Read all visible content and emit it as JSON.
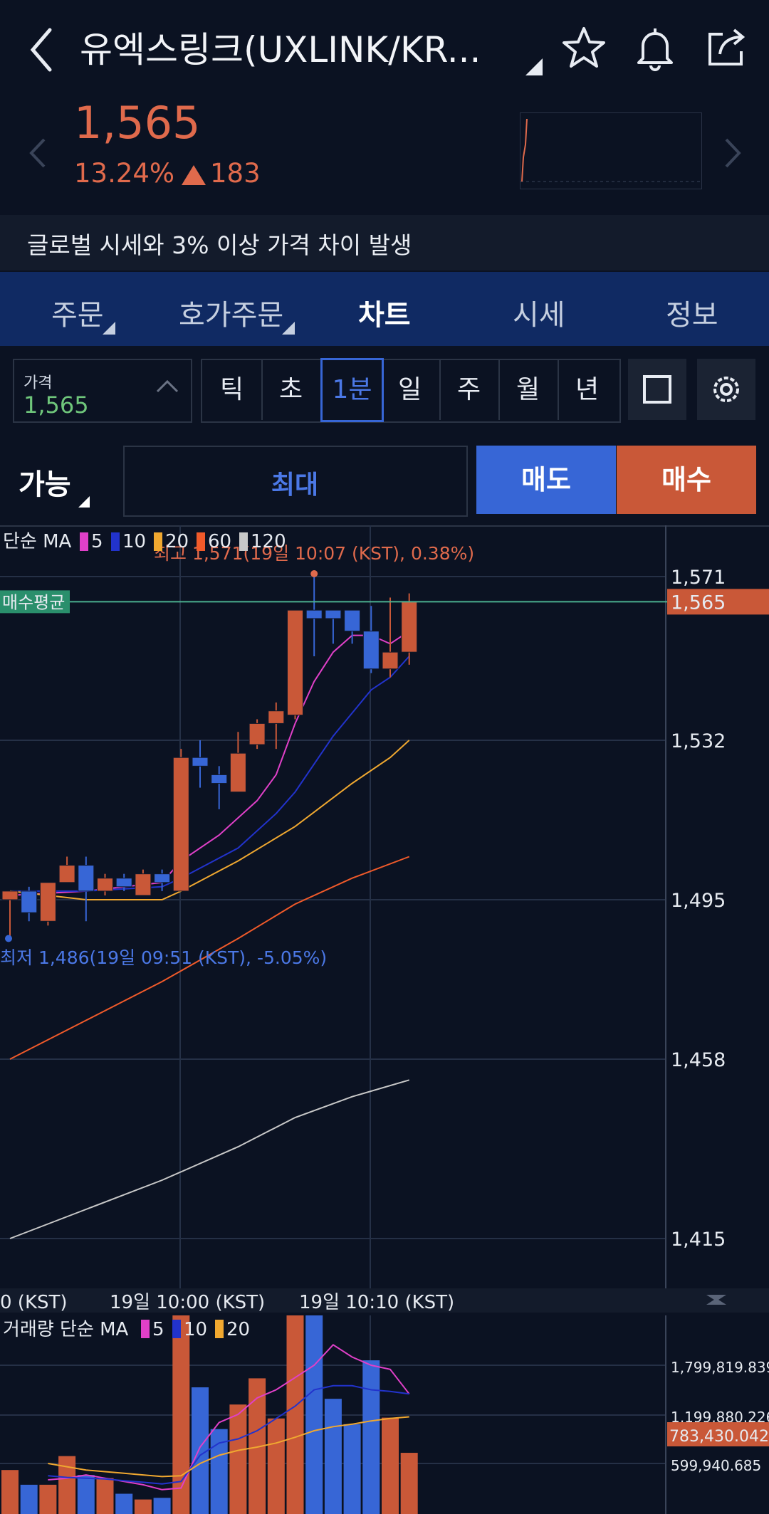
{
  "header": {
    "title": "유엑스링크(UXLINK/KR...",
    "icons": [
      "back-icon",
      "star-icon",
      "bell-icon",
      "share-icon"
    ]
  },
  "quote": {
    "price": "1,565",
    "change_pct": "13.24%",
    "change_value": "183",
    "direction": "up",
    "color": "#e06a4c"
  },
  "notice": "글로벌 시세와 3% 이상 가격 차이 발생",
  "tabs": [
    {
      "label": "주문",
      "active": false
    },
    {
      "label": "호가주문",
      "active": false
    },
    {
      "label": "차트",
      "active": true
    },
    {
      "label": "시세",
      "active": false
    },
    {
      "label": "정보",
      "active": false
    }
  ],
  "price_selector": {
    "label": "가격",
    "value": "1,565"
  },
  "periods": [
    {
      "label": "틱",
      "active": false
    },
    {
      "label": "초",
      "active": false
    },
    {
      "label": "1분",
      "active": true
    },
    {
      "label": "일",
      "active": false
    },
    {
      "label": "주",
      "active": false
    },
    {
      "label": "월",
      "active": false
    },
    {
      "label": "년",
      "active": false
    }
  ],
  "order": {
    "available_label": "가능",
    "max_label": "최대",
    "sell_label": "매도",
    "buy_label": "매수",
    "sell_color": "#3766d6",
    "buy_color": "#c95838"
  },
  "chart_data": {
    "type": "candlestick",
    "legend": {
      "prefix": "단순 MA",
      "items": [
        {
          "label": "5",
          "color": "#e040c8"
        },
        {
          "label": "10",
          "color": "#2233cc"
        },
        {
          "label": "20",
          "color": "#f0a830"
        },
        {
          "label": "60",
          "color": "#f05a2a"
        },
        {
          "label": "120",
          "color": "#c8c8c8"
        }
      ]
    },
    "y_ticks": [
      "1,571",
      "1,532",
      "1,495",
      "1,458",
      "1,415"
    ],
    "y_range": [
      1402,
      1580
    ],
    "current_price_label": "1,565",
    "buy_avg_label": "매수평균",
    "high_annotation": "최고 1,571(19일 10:07 (KST), 0.38%)",
    "low_annotation": "최저 1,486(19일 09:51 (KST), -5.05%)",
    "x_labels": [
      "0 (KST)",
      "19일 10:00 (KST)",
      "19일 10:10 (KST)"
    ],
    "candles": [
      {
        "o": 1495,
        "h": 1497,
        "l": 1486,
        "c": 1497
      },
      {
        "o": 1497,
        "h": 1498,
        "l": 1490,
        "c": 1492
      },
      {
        "o": 1490,
        "h": 1499,
        "l": 1489,
        "c": 1499
      },
      {
        "o": 1499,
        "h": 1505,
        "l": 1499,
        "c": 1503
      },
      {
        "o": 1503,
        "h": 1505,
        "l": 1490,
        "c": 1497
      },
      {
        "o": 1497,
        "h": 1501,
        "l": 1496,
        "c": 1500
      },
      {
        "o": 1500,
        "h": 1501,
        "l": 1497,
        "c": 1498
      },
      {
        "o": 1496,
        "h": 1502,
        "l": 1496,
        "c": 1501
      },
      {
        "o": 1501,
        "h": 1502,
        "l": 1497,
        "c": 1499
      },
      {
        "o": 1497,
        "h": 1530,
        "l": 1497,
        "c": 1528
      },
      {
        "o": 1528,
        "h": 1532,
        "l": 1521,
        "c": 1526
      },
      {
        "o": 1524,
        "h": 1526,
        "l": 1516,
        "c": 1522
      },
      {
        "o": 1520,
        "h": 1534,
        "l": 1520,
        "c": 1529
      },
      {
        "o": 1531,
        "h": 1537,
        "l": 1530,
        "c": 1536
      },
      {
        "o": 1536,
        "h": 1541,
        "l": 1530,
        "c": 1539
      },
      {
        "o": 1538,
        "h": 1563,
        "l": 1537,
        "c": 1563
      },
      {
        "o": 1563,
        "h": 1571,
        "l": 1552,
        "c": 1561
      },
      {
        "o": 1563,
        "h": 1563,
        "l": 1555,
        "c": 1561
      },
      {
        "o": 1563,
        "h": 1563,
        "l": 1555,
        "c": 1558
      },
      {
        "o": 1558,
        "h": 1564,
        "l": 1548,
        "c": 1549
      },
      {
        "o": 1549,
        "h": 1566,
        "l": 1547,
        "c": 1553
      },
      {
        "o": 1553,
        "h": 1567,
        "l": 1550,
        "c": 1565
      }
    ],
    "ma_series": [
      {
        "name": "5",
        "color": "#e040c8",
        "points": [
          [
            0,
            1496
          ],
          [
            4,
            1497
          ],
          [
            8,
            1499
          ],
          [
            9,
            1504
          ],
          [
            11,
            1510
          ],
          [
            13,
            1518
          ],
          [
            14,
            1524
          ],
          [
            15,
            1536
          ],
          [
            16,
            1546
          ],
          [
            17,
            1553
          ],
          [
            18,
            1557
          ],
          [
            19,
            1557
          ],
          [
            20,
            1555
          ],
          [
            21,
            1558
          ]
        ]
      },
      {
        "name": "10",
        "color": "#2233cc",
        "points": [
          [
            0,
            1497
          ],
          [
            4,
            1497
          ],
          [
            8,
            1498
          ],
          [
            9,
            1500
          ],
          [
            12,
            1507
          ],
          [
            14,
            1515
          ],
          [
            15,
            1520
          ],
          [
            17,
            1533
          ],
          [
            19,
            1544
          ],
          [
            20,
            1547
          ],
          [
            21,
            1552
          ]
        ]
      },
      {
        "name": "20",
        "color": "#f0a830",
        "points": [
          [
            0,
            1497
          ],
          [
            4,
            1495
          ],
          [
            8,
            1495
          ],
          [
            9,
            1497
          ],
          [
            12,
            1504
          ],
          [
            15,
            1512
          ],
          [
            18,
            1522
          ],
          [
            20,
            1528
          ],
          [
            21,
            1532
          ]
        ]
      },
      {
        "name": "60",
        "color": "#f05a2a",
        "points": [
          [
            0,
            1458
          ],
          [
            4,
            1467
          ],
          [
            8,
            1476
          ],
          [
            12,
            1486
          ],
          [
            15,
            1494
          ],
          [
            18,
            1500
          ],
          [
            21,
            1505
          ]
        ]
      },
      {
        "name": "120",
        "color": "#c8c8c8",
        "points": [
          [
            0,
            1415
          ],
          [
            4,
            1422
          ],
          [
            8,
            1429
          ],
          [
            12,
            1437
          ],
          [
            15,
            1444
          ],
          [
            18,
            1449
          ],
          [
            21,
            1453
          ]
        ]
      }
    ],
    "volume": {
      "legend_prefix": "거래량 단순 MA",
      "legend_items": [
        {
          "label": "5",
          "color": "#e040c8"
        },
        {
          "label": "10",
          "color": "#2233cc"
        },
        {
          "label": "20",
          "color": "#f0a830"
        }
      ],
      "y_ticks": [
        "1,799,819.839",
        "1,199,880.226",
        "599,940.685"
      ],
      "current_label": "783,430.042",
      "bars": [
        520000,
        340000,
        340000,
        690000,
        460000,
        420000,
        230000,
        160000,
        180000,
        2500000,
        1530000,
        1020000,
        1320000,
        1640000,
        1150000,
        2410000,
        2730000,
        1390000,
        1080000,
        1860000,
        1160000,
        730000
      ],
      "max": 2150000
    }
  }
}
